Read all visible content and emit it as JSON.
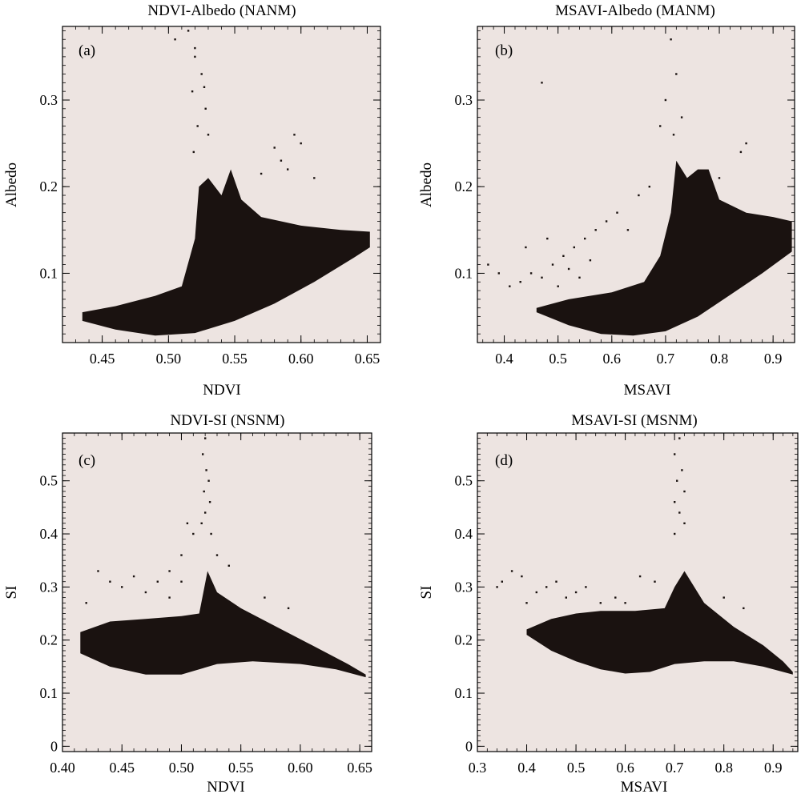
{
  "colors": {
    "plot_bg": "#ede4e1",
    "points": "#1a1210",
    "axis": "#000000"
  },
  "chart_data": [
    {
      "type": "scatter",
      "panel": "(a)",
      "title": "NDVI-Albedo (NANM)",
      "xlabel": "NDVI",
      "ylabel": "Albedo",
      "xlim": [
        0.42,
        0.66
      ],
      "ylim": [
        0.02,
        0.385
      ],
      "xticks": [
        "0.45",
        "0.50",
        "0.55",
        "0.60",
        "0.65"
      ],
      "xtick_values": [
        0.45,
        0.5,
        0.55,
        0.6,
        0.65
      ],
      "yticks": [
        "0.1",
        "0.2",
        "0.3"
      ],
      "ytick_values": [
        0.1,
        0.2,
        0.3
      ],
      "grid": false,
      "dense_region": {
        "upper": [
          [
            0.435,
            0.055
          ],
          [
            0.46,
            0.062
          ],
          [
            0.49,
            0.074
          ],
          [
            0.51,
            0.085
          ],
          [
            0.52,
            0.14
          ],
          [
            0.523,
            0.2
          ],
          [
            0.53,
            0.21
          ],
          [
            0.54,
            0.19
          ],
          [
            0.547,
            0.22
          ],
          [
            0.555,
            0.185
          ],
          [
            0.57,
            0.165
          ],
          [
            0.6,
            0.155
          ],
          [
            0.63,
            0.15
          ],
          [
            0.652,
            0.148
          ]
        ],
        "lower": [
          [
            0.435,
            0.045
          ],
          [
            0.46,
            0.035
          ],
          [
            0.49,
            0.028
          ],
          [
            0.52,
            0.031
          ],
          [
            0.55,
            0.045
          ],
          [
            0.58,
            0.065
          ],
          [
            0.61,
            0.09
          ],
          [
            0.64,
            0.118
          ],
          [
            0.652,
            0.13
          ]
        ]
      },
      "sparse_points": [
        [
          0.515,
          0.38
        ],
        [
          0.52,
          0.35
        ],
        [
          0.525,
          0.33
        ],
        [
          0.518,
          0.31
        ],
        [
          0.528,
          0.29
        ],
        [
          0.522,
          0.27
        ],
        [
          0.53,
          0.26
        ],
        [
          0.519,
          0.24
        ],
        [
          0.58,
          0.245
        ],
        [
          0.595,
          0.26
        ],
        [
          0.6,
          0.25
        ],
        [
          0.585,
          0.23
        ],
        [
          0.57,
          0.215
        ],
        [
          0.61,
          0.21
        ],
        [
          0.59,
          0.22
        ],
        [
          0.505,
          0.37
        ],
        [
          0.52,
          0.36
        ],
        [
          0.527,
          0.315
        ]
      ]
    },
    {
      "type": "scatter",
      "panel": "(b)",
      "title": "MSAVI-Albedo (MANM)",
      "xlabel": "MSAVI",
      "ylabel": "Albedo",
      "xlim": [
        0.35,
        0.94
      ],
      "ylim": [
        0.02,
        0.385
      ],
      "xticks": [
        "0.4",
        "0.5",
        "0.6",
        "0.7",
        "0.8",
        "0.9"
      ],
      "xtick_values": [
        0.4,
        0.5,
        0.6,
        0.7,
        0.8,
        0.9
      ],
      "yticks": [
        "0.1",
        "0.2",
        "0.3"
      ],
      "ytick_values": [
        0.1,
        0.2,
        0.3
      ],
      "grid": false,
      "dense_region": {
        "upper": [
          [
            0.46,
            0.06
          ],
          [
            0.52,
            0.07
          ],
          [
            0.6,
            0.078
          ],
          [
            0.66,
            0.09
          ],
          [
            0.69,
            0.12
          ],
          [
            0.71,
            0.17
          ],
          [
            0.72,
            0.23
          ],
          [
            0.74,
            0.21
          ],
          [
            0.76,
            0.22
          ],
          [
            0.78,
            0.22
          ],
          [
            0.8,
            0.185
          ],
          [
            0.85,
            0.17
          ],
          [
            0.9,
            0.165
          ],
          [
            0.935,
            0.16
          ]
        ],
        "lower": [
          [
            0.46,
            0.055
          ],
          [
            0.52,
            0.04
          ],
          [
            0.58,
            0.03
          ],
          [
            0.64,
            0.028
          ],
          [
            0.7,
            0.033
          ],
          [
            0.76,
            0.05
          ],
          [
            0.82,
            0.075
          ],
          [
            0.88,
            0.1
          ],
          [
            0.935,
            0.125
          ]
        ]
      },
      "sparse_points": [
        [
          0.37,
          0.11
        ],
        [
          0.39,
          0.1
        ],
        [
          0.41,
          0.085
        ],
        [
          0.43,
          0.09
        ],
        [
          0.45,
          0.1
        ],
        [
          0.47,
          0.095
        ],
        [
          0.49,
          0.11
        ],
        [
          0.51,
          0.12
        ],
        [
          0.53,
          0.13
        ],
        [
          0.55,
          0.14
        ],
        [
          0.57,
          0.15
        ],
        [
          0.59,
          0.16
        ],
        [
          0.61,
          0.17
        ],
        [
          0.63,
          0.15
        ],
        [
          0.65,
          0.19
        ],
        [
          0.67,
          0.2
        ],
        [
          0.44,
          0.13
        ],
        [
          0.48,
          0.14
        ],
        [
          0.52,
          0.105
        ],
        [
          0.56,
          0.115
        ],
        [
          0.71,
          0.37
        ],
        [
          0.72,
          0.33
        ],
        [
          0.7,
          0.3
        ],
        [
          0.73,
          0.28
        ],
        [
          0.715,
          0.26
        ],
        [
          0.69,
          0.27
        ],
        [
          0.84,
          0.24
        ],
        [
          0.85,
          0.25
        ],
        [
          0.8,
          0.21
        ],
        [
          0.47,
          0.32
        ],
        [
          0.5,
          0.085
        ],
        [
          0.54,
          0.095
        ]
      ]
    },
    {
      "type": "scatter",
      "panel": "(c)",
      "title": "NDVI-SI (NSNM)",
      "xlabel": "NDVI",
      "ylabel": "SI",
      "xlim": [
        0.4,
        0.66
      ],
      "ylim": [
        -0.01,
        0.59
      ],
      "xticks": [
        "0.40",
        "0.45",
        "0.50",
        "0.55",
        "0.60",
        "0.65"
      ],
      "xtick_values": [
        0.4,
        0.45,
        0.5,
        0.55,
        0.6,
        0.65
      ],
      "yticks": [
        "0",
        "0.1",
        "0.2",
        "0.3",
        "0.4",
        "0.5"
      ],
      "ytick_values": [
        0,
        0.1,
        0.2,
        0.3,
        0.4,
        0.5
      ],
      "grid": false,
      "dense_region": {
        "upper": [
          [
            0.415,
            0.215
          ],
          [
            0.44,
            0.235
          ],
          [
            0.47,
            0.24
          ],
          [
            0.5,
            0.245
          ],
          [
            0.515,
            0.25
          ],
          [
            0.522,
            0.33
          ],
          [
            0.53,
            0.29
          ],
          [
            0.55,
            0.26
          ],
          [
            0.58,
            0.225
          ],
          [
            0.61,
            0.19
          ],
          [
            0.64,
            0.155
          ],
          [
            0.655,
            0.135
          ]
        ],
        "lower": [
          [
            0.415,
            0.175
          ],
          [
            0.44,
            0.15
          ],
          [
            0.47,
            0.135
          ],
          [
            0.5,
            0.135
          ],
          [
            0.53,
            0.155
          ],
          [
            0.56,
            0.16
          ],
          [
            0.6,
            0.155
          ],
          [
            0.63,
            0.145
          ],
          [
            0.655,
            0.13
          ]
        ]
      },
      "sparse_points": [
        [
          0.52,
          0.58
        ],
        [
          0.518,
          0.55
        ],
        [
          0.521,
          0.52
        ],
        [
          0.523,
          0.5
        ],
        [
          0.519,
          0.48
        ],
        [
          0.524,
          0.46
        ],
        [
          0.52,
          0.44
        ],
        [
          0.517,
          0.42
        ],
        [
          0.525,
          0.4
        ],
        [
          0.43,
          0.33
        ],
        [
          0.44,
          0.31
        ],
        [
          0.45,
          0.3
        ],
        [
          0.46,
          0.32
        ],
        [
          0.47,
          0.29
        ],
        [
          0.48,
          0.31
        ],
        [
          0.49,
          0.28
        ],
        [
          0.5,
          0.36
        ],
        [
          0.51,
          0.4
        ],
        [
          0.505,
          0.42
        ],
        [
          0.53,
          0.36
        ],
        [
          0.54,
          0.34
        ],
        [
          0.57,
          0.28
        ],
        [
          0.59,
          0.26
        ],
        [
          0.42,
          0.27
        ],
        [
          0.49,
          0.33
        ],
        [
          0.5,
          0.31
        ]
      ]
    },
    {
      "type": "scatter",
      "panel": "(d)",
      "title": "MSAVI-SI (MSNM)",
      "xlabel": "MSAVI",
      "ylabel": "SI",
      "xlim": [
        0.3,
        0.95
      ],
      "ylim": [
        -0.01,
        0.59
      ],
      "xticks": [
        "0.3",
        "0.4",
        "0.5",
        "0.6",
        "0.7",
        "0.8",
        "0.9"
      ],
      "xtick_values": [
        0.3,
        0.4,
        0.5,
        0.6,
        0.7,
        0.8,
        0.9
      ],
      "yticks": [
        "0",
        "0.1",
        "0.2",
        "0.3",
        "0.4",
        "0.5"
      ],
      "ytick_values": [
        0,
        0.1,
        0.2,
        0.3,
        0.4,
        0.5
      ],
      "grid": false,
      "dense_region": {
        "upper": [
          [
            0.4,
            0.22
          ],
          [
            0.45,
            0.24
          ],
          [
            0.5,
            0.25
          ],
          [
            0.55,
            0.255
          ],
          [
            0.62,
            0.255
          ],
          [
            0.68,
            0.26
          ],
          [
            0.7,
            0.3
          ],
          [
            0.72,
            0.33
          ],
          [
            0.76,
            0.27
          ],
          [
            0.82,
            0.225
          ],
          [
            0.88,
            0.19
          ],
          [
            0.92,
            0.16
          ],
          [
            0.94,
            0.14
          ]
        ],
        "lower": [
          [
            0.4,
            0.21
          ],
          [
            0.45,
            0.18
          ],
          [
            0.5,
            0.16
          ],
          [
            0.55,
            0.145
          ],
          [
            0.6,
            0.137
          ],
          [
            0.65,
            0.14
          ],
          [
            0.7,
            0.155
          ],
          [
            0.76,
            0.16
          ],
          [
            0.82,
            0.16
          ],
          [
            0.88,
            0.15
          ],
          [
            0.94,
            0.135
          ]
        ]
      },
      "sparse_points": [
        [
          0.71,
          0.58
        ],
        [
          0.7,
          0.55
        ],
        [
          0.715,
          0.52
        ],
        [
          0.705,
          0.5
        ],
        [
          0.72,
          0.48
        ],
        [
          0.7,
          0.46
        ],
        [
          0.71,
          0.44
        ],
        [
          0.72,
          0.42
        ],
        [
          0.7,
          0.4
        ],
        [
          0.34,
          0.3
        ],
        [
          0.35,
          0.31
        ],
        [
          0.37,
          0.33
        ],
        [
          0.39,
          0.32
        ],
        [
          0.42,
          0.29
        ],
        [
          0.44,
          0.3
        ],
        [
          0.46,
          0.31
        ],
        [
          0.48,
          0.28
        ],
        [
          0.5,
          0.29
        ],
        [
          0.52,
          0.3
        ],
        [
          0.55,
          0.27
        ],
        [
          0.58,
          0.28
        ],
        [
          0.6,
          0.27
        ],
        [
          0.63,
          0.32
        ],
        [
          0.66,
          0.31
        ],
        [
          0.8,
          0.28
        ],
        [
          0.84,
          0.26
        ],
        [
          0.4,
          0.27
        ]
      ]
    }
  ]
}
